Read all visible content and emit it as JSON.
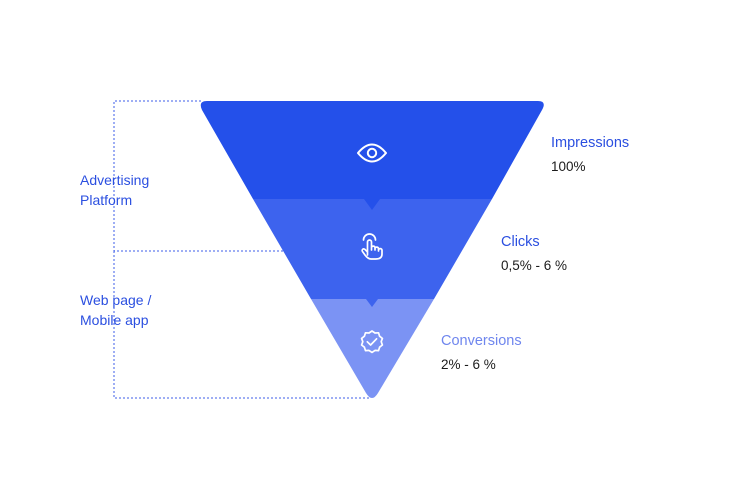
{
  "colors": {
    "stage_1": "#2450ea",
    "stage_2": "#3d63ee",
    "stage_3": "#7b93f4",
    "bracket": "#3d5ee8",
    "value_text": "#1b1b1b"
  },
  "icons": [
    "eye-icon",
    "touch-tap-icon",
    "verified-badge-icon"
  ],
  "stages": [
    {
      "name": "Impressions",
      "value": "100%",
      "icon": "eye-icon",
      "color": "#2450ea",
      "label_color": "#2b4fe0"
    },
    {
      "name": "Clicks",
      "value": "0,5% - 6 %",
      "icon": "touch-tap-icon",
      "color": "#3d63ee",
      "label_color": "#2b4fe0"
    },
    {
      "name": "Conversions",
      "value": "2% - 6 %",
      "icon": "verified-badge-icon",
      "color": "#7b93f4",
      "label_color": "#6f86ee"
    }
  ],
  "groups": [
    {
      "lines": [
        "Advertising",
        "Platform"
      ]
    },
    {
      "lines": [
        "Web page /",
        "Mobile app"
      ]
    }
  ]
}
